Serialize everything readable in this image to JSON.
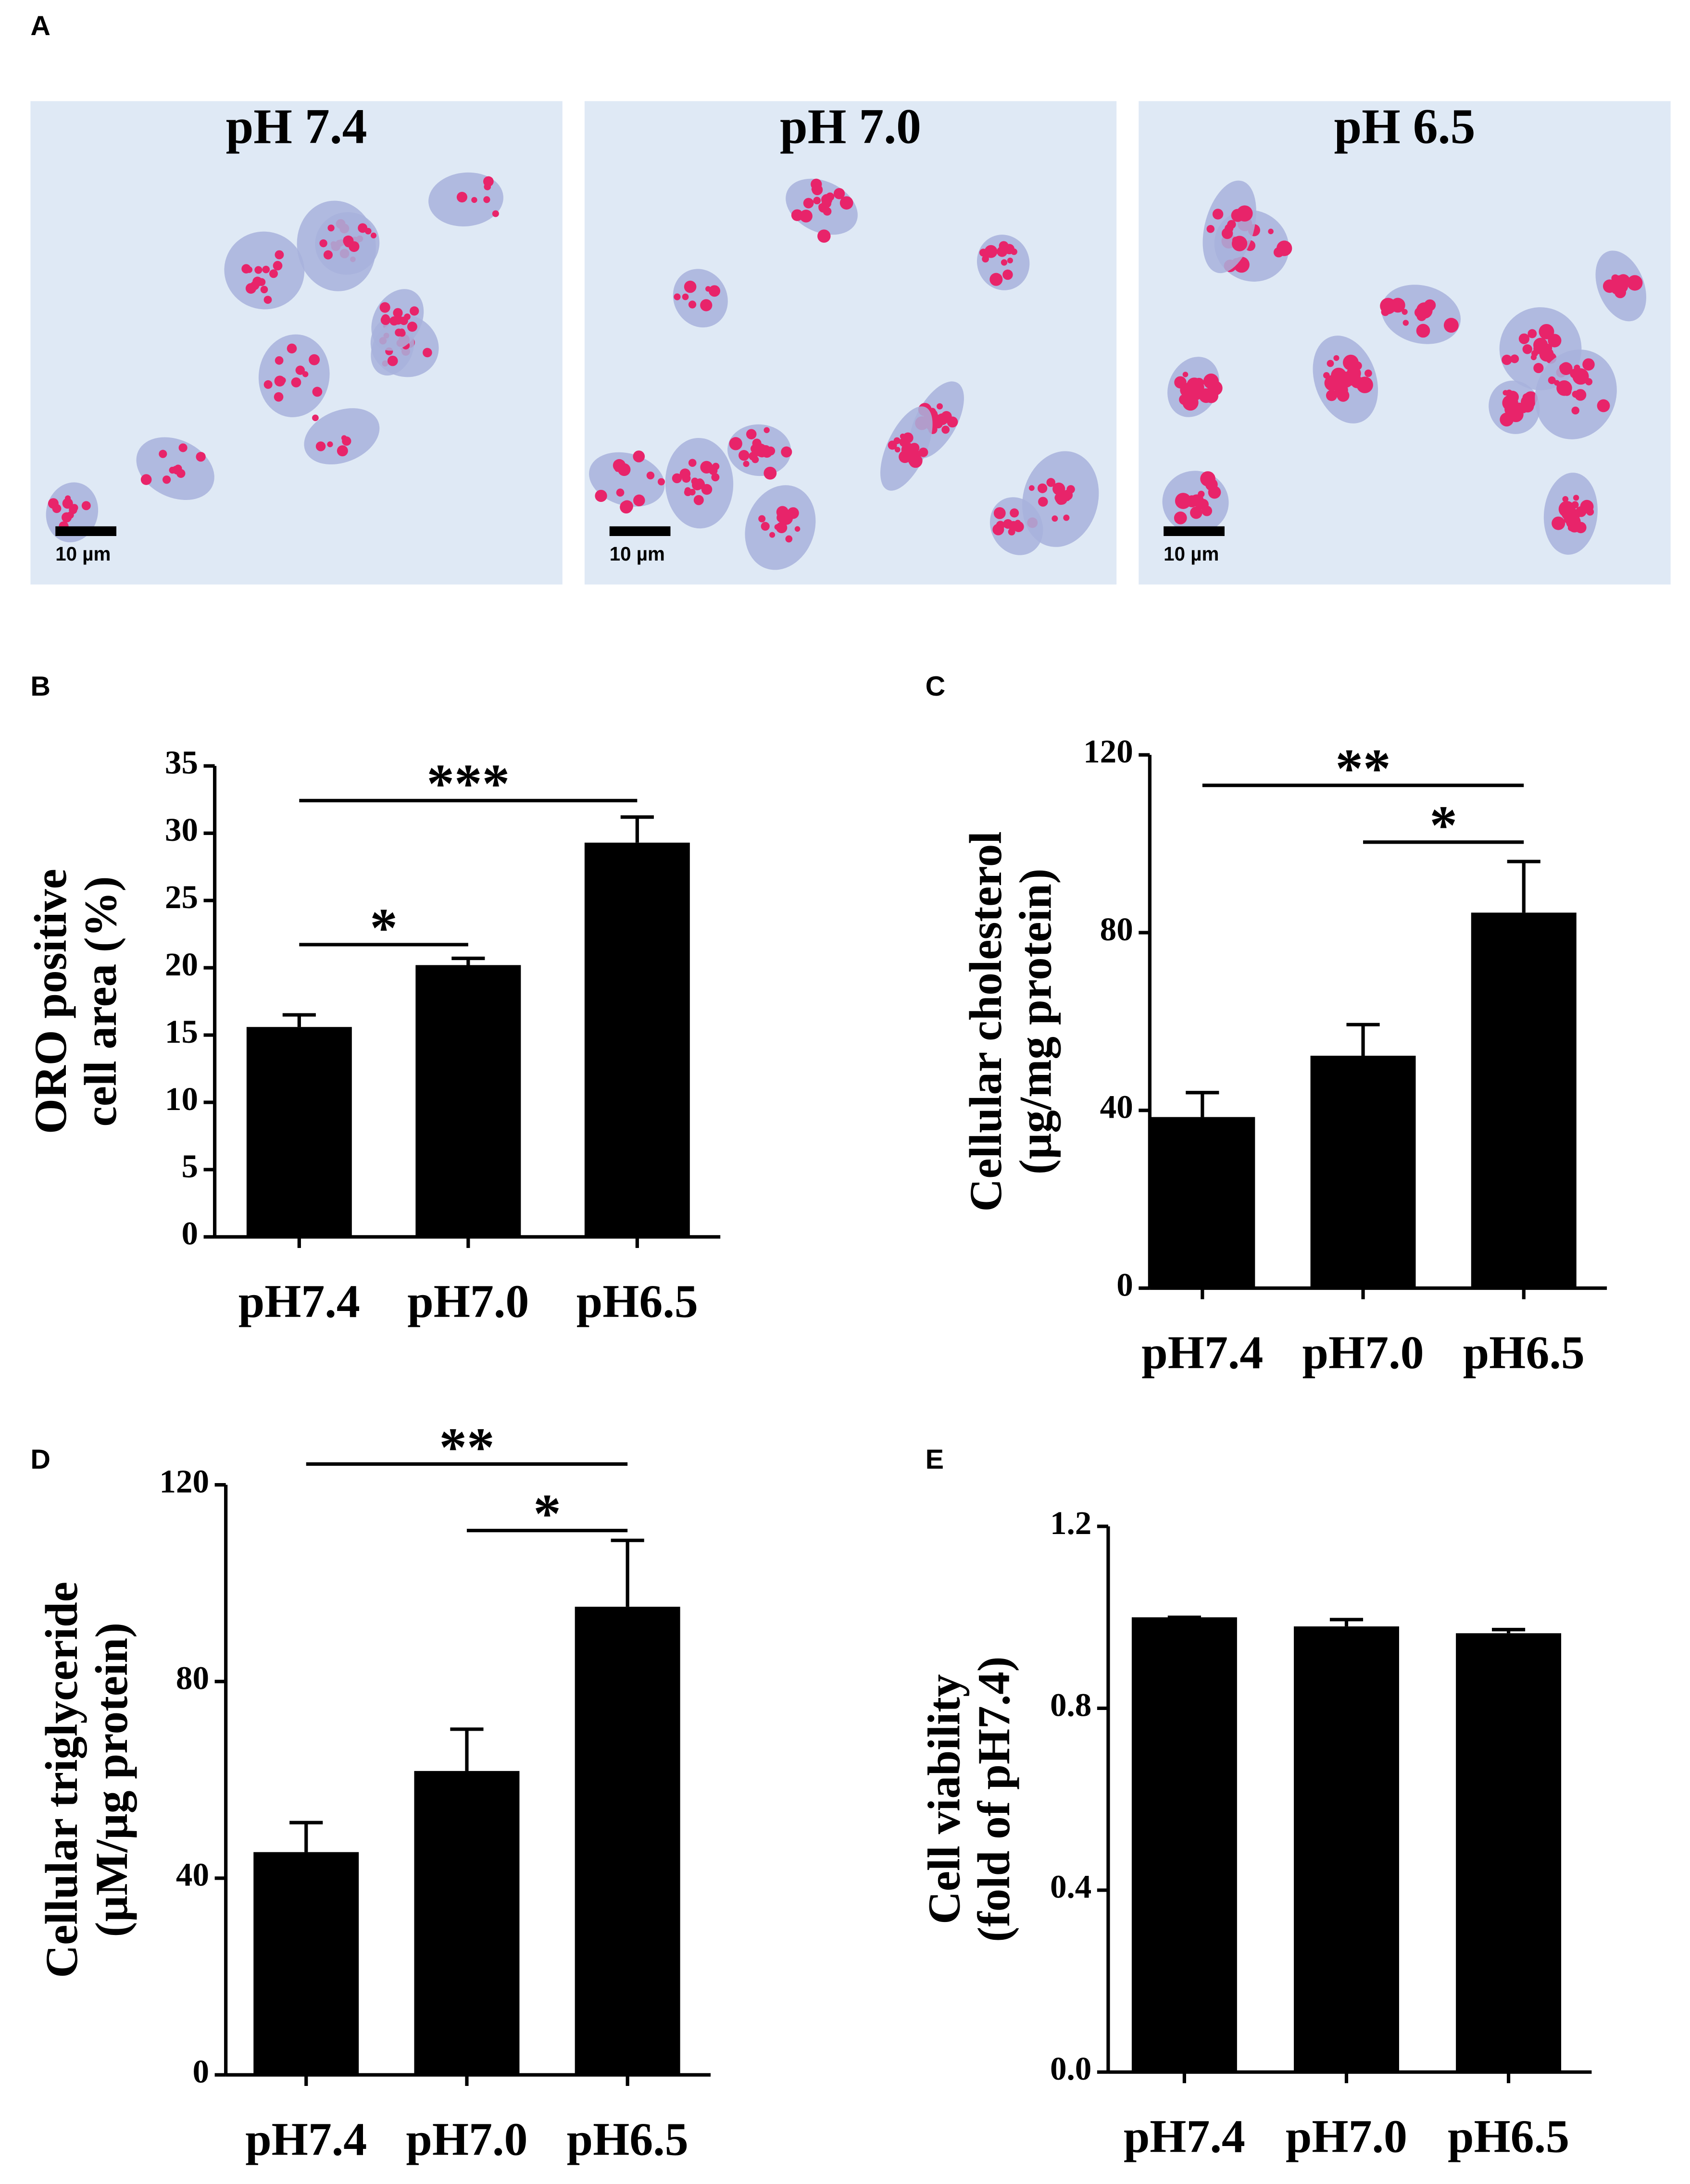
{
  "micrographs": {
    "panel": "A",
    "images": [
      {
        "label": "pH 7.4",
        "scale_bar": "10 µm"
      },
      {
        "label": "pH 7.0",
        "scale_bar": "10 µm"
      },
      {
        "label": "pH 6.5",
        "scale_bar": "10 µm"
      }
    ]
  },
  "chart_data": [
    {
      "type": "bar",
      "panel": "B",
      "ylabel": [
        "ORO positive",
        "cell area (%)"
      ],
      "categories": [
        "pH7.4",
        "pH7.0",
        "pH6.5"
      ],
      "values": [
        15.6,
        20.2,
        29.3
      ],
      "errors": [
        0.9,
        0.5,
        1.9
      ],
      "color": "#000000",
      "ylim": [
        0,
        35
      ],
      "yticks": [
        0,
        5,
        10,
        15,
        20,
        25,
        30,
        35
      ],
      "annotations": [
        {
          "text": "***",
          "from": "pH7.4",
          "to": "pH6.5"
        },
        {
          "text": "*",
          "from": "pH7.4",
          "to": "pH7.0"
        }
      ]
    },
    {
      "type": "bar",
      "panel": "C",
      "ylabel": [
        "Cellular cholesterol",
        "(µg/mg protein)"
      ],
      "categories": [
        "pH7.4",
        "pH7.0",
        "pH6.5"
      ],
      "values": [
        38.5,
        52.3,
        84.5
      ],
      "errors": [
        5.5,
        7,
        11.5
      ],
      "color": "#000000",
      "ylim": [
        0,
        120
      ],
      "yticks": [
        0,
        40,
        80,
        120
      ],
      "annotations": [
        {
          "text": "**",
          "from": "pH7.4",
          "to": "pH6.5"
        },
        {
          "text": "*",
          "from": "pH7.0",
          "to": "pH6.5"
        }
      ]
    },
    {
      "type": "bar",
      "panel": "D",
      "ylabel": [
        "Cellular triglyceride",
        "(µM/µg protein)"
      ],
      "categories": [
        "pH7.4",
        "pH7.0",
        "pH6.5"
      ],
      "values": [
        45.3,
        61.8,
        95.2
      ],
      "errors": [
        6,
        8.5,
        13.5
      ],
      "color": "#000000",
      "ylim": [
        0,
        120
      ],
      "yticks": [
        0,
        40,
        80,
        120
      ],
      "annotations": [
        {
          "text": "**",
          "from": "pH7.4",
          "to": "pH6.5"
        },
        {
          "text": "*",
          "from": "pH7.0",
          "to": "pH6.5"
        }
      ]
    },
    {
      "type": "bar",
      "panel": "E",
      "ylabel": [
        "Cell viability",
        "(fold of pH7.4)"
      ],
      "categories": [
        "pH7.4",
        "pH7.0",
        "pH6.5"
      ],
      "values": [
        1.0,
        0.98,
        0.965
      ],
      "errors": [
        0,
        0.015,
        0.008
      ],
      "color": "#000000",
      "ylim": [
        0,
        1.2
      ],
      "yticks": [
        {
          "value": 0,
          "label": "0.0"
        },
        0.4,
        0.8,
        1.2
      ],
      "annotations": []
    }
  ]
}
